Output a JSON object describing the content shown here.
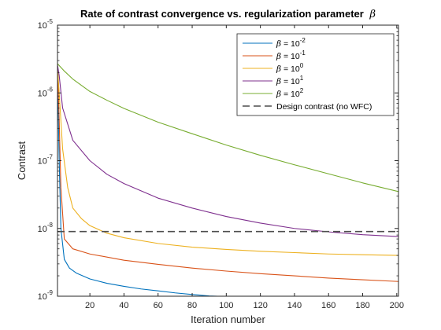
{
  "chart_data": {
    "type": "line",
    "title": "Rate of contrast convergence vs. regularization parameter",
    "title_symbol": "β",
    "xlabel": "Iteration number",
    "ylabel": "Contrast",
    "xlim": [
      1,
      201
    ],
    "ylim": [
      1e-09,
      1e-05
    ],
    "yscale": "log",
    "grid": false,
    "legend_position": "top-right",
    "x_ticks": [
      20,
      40,
      60,
      80,
      100,
      120,
      140,
      160,
      180,
      200
    ],
    "y_ticks": [
      {
        "value": 1e-09,
        "base": "10",
        "exp": "-9"
      },
      {
        "value": 1e-08,
        "base": "10",
        "exp": "-8"
      },
      {
        "value": 1e-07,
        "base": "10",
        "exp": "-7"
      },
      {
        "value": 1e-06,
        "base": "10",
        "exp": "-6"
      },
      {
        "value": 1e-05,
        "base": "10",
        "exp": "-5"
      }
    ],
    "series": [
      {
        "name": "β = 10^-2",
        "label_base": "β = 10",
        "label_exp": "-2",
        "color": "#0072BD",
        "x": [
          1,
          2,
          3,
          5,
          8,
          12,
          20,
          30,
          40,
          50,
          60,
          70,
          80,
          90,
          95
        ],
        "y": [
          2.5e-06,
          1e-07,
          1e-08,
          3.5e-09,
          2.6e-09,
          2.2e-09,
          1.8e-09,
          1.55e-09,
          1.4e-09,
          1.28e-09,
          1.2e-09,
          1.12e-09,
          1.06e-09,
          1.01e-09,
          1e-09
        ]
      },
      {
        "name": "β = 10^-1",
        "label_base": "β = 10",
        "label_exp": "-1",
        "color": "#D95319",
        "x": [
          1,
          2,
          3,
          5,
          10,
          20,
          40,
          60,
          80,
          100,
          120,
          140,
          160,
          180,
          201
        ],
        "y": [
          2.5e-06,
          4e-07,
          4e-08,
          7e-09,
          5e-09,
          4.2e-09,
          3.4e-09,
          2.95e-09,
          2.6e-09,
          2.35e-09,
          2.15e-09,
          2e-09,
          1.85e-09,
          1.75e-09,
          1.65e-09
        ]
      },
      {
        "name": "β = 10^0",
        "label_base": "β = 10",
        "label_exp": "0",
        "color": "#EDB120",
        "x": [
          1,
          2,
          4,
          7,
          10,
          15,
          20,
          30,
          40,
          60,
          80,
          100,
          120,
          140,
          160,
          180,
          201
        ],
        "y": [
          2.5e-06,
          1e-06,
          1.5e-07,
          4e-08,
          2e-08,
          1.4e-08,
          1.1e-08,
          8.5e-09,
          7.3e-09,
          6e-09,
          5.3e-09,
          4.9e-09,
          4.6e-09,
          4.4e-09,
          4.2e-09,
          4.1e-09,
          4e-09
        ]
      },
      {
        "name": "β = 10^1",
        "label_base": "β = 10",
        "label_exp": "1",
        "color": "#7E2F8E",
        "x": [
          1,
          2,
          4,
          10,
          20,
          30,
          40,
          60,
          80,
          100,
          120,
          140,
          160,
          180,
          201
        ],
        "y": [
          2.6e-06,
          1.8e-06,
          6e-07,
          2e-07,
          1e-07,
          6.3e-08,
          4.6e-08,
          2.8e-08,
          2e-08,
          1.5e-08,
          1.2e-08,
          1e-08,
          8.9e-09,
          8.1e-09,
          7.6e-09
        ]
      },
      {
        "name": "β = 10^2",
        "label_base": "β = 10",
        "label_exp": "2",
        "color": "#77AC30",
        "x": [
          1,
          5,
          10,
          20,
          30,
          40,
          60,
          80,
          100,
          120,
          140,
          160,
          180,
          201
        ],
        "y": [
          2.7e-06,
          2.1e-06,
          1.6e-06,
          1.05e-06,
          7.8e-07,
          5.9e-07,
          3.7e-07,
          2.5e-07,
          1.7e-07,
          1.2e-07,
          8.7e-08,
          6.4e-08,
          4.7e-08,
          3.5e-08
        ]
      },
      {
        "name": "Design contrast (no WFC)",
        "label_base": "Design contrast (no WFC)",
        "label_exp": "",
        "color": "#4d4d4d",
        "dash": true,
        "x": [
          1,
          201
        ],
        "y": [
          9e-09,
          9e-09
        ]
      }
    ]
  }
}
